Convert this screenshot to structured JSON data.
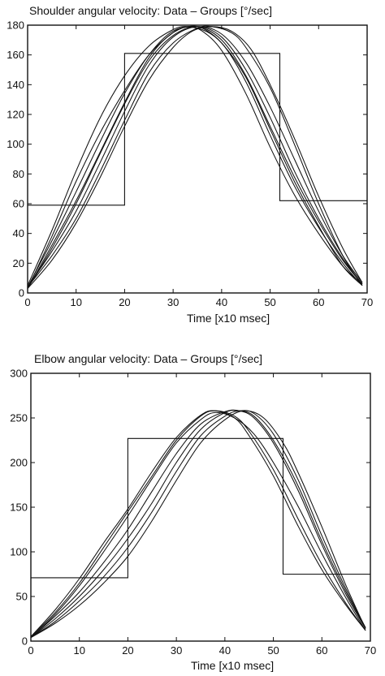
{
  "chart_data": [
    {
      "type": "line",
      "title": "Shoulder angular velocity: Data – Groups  [°/sec]",
      "xlabel": "Time  [x10 msec]",
      "ylabel": "",
      "xlim": [
        0,
        70
      ],
      "ylim": [
        0,
        180
      ],
      "xticks": [
        0,
        10,
        20,
        30,
        40,
        50,
        60,
        70
      ],
      "yticks": [
        0,
        20,
        40,
        60,
        80,
        100,
        120,
        140,
        160,
        180
      ],
      "grid": false,
      "series": [
        {
          "x": [
            0,
            5,
            10,
            15,
            20,
            25,
            30,
            33,
            36,
            40,
            45,
            50,
            55,
            60,
            65,
            69
          ],
          "y": [
            3,
            38,
            75,
            108,
            136,
            160,
            175,
            179,
            178,
            168,
            145,
            110,
            75,
            45,
            18,
            5
          ]
        },
        {
          "x": [
            0,
            5,
            10,
            15,
            20,
            25,
            30,
            35,
            40,
            45,
            50,
            55,
            60,
            65,
            69
          ],
          "y": [
            3,
            32,
            62,
            95,
            128,
            158,
            175,
            179,
            170,
            146,
            112,
            78,
            48,
            22,
            6
          ]
        },
        {
          "x": [
            0,
            5,
            10,
            15,
            20,
            25,
            30,
            35,
            40,
            45,
            50,
            55,
            60,
            65,
            69
          ],
          "y": [
            4,
            28,
            55,
            88,
            122,
            153,
            172,
            179,
            174,
            155,
            125,
            90,
            55,
            25,
            7
          ]
        },
        {
          "x": [
            0,
            5,
            10,
            15,
            20,
            25,
            30,
            35,
            38,
            42,
            45,
            50,
            55,
            60,
            65,
            69
          ],
          "y": [
            4,
            25,
            50,
            82,
            116,
            148,
            168,
            178,
            179,
            175,
            165,
            138,
            100,
            60,
            25,
            5
          ]
        },
        {
          "x": [
            0,
            5,
            10,
            15,
            20,
            25,
            30,
            34,
            38,
            42,
            46,
            50,
            55,
            60,
            65,
            69
          ],
          "y": [
            3,
            22,
            47,
            78,
            112,
            143,
            165,
            176,
            179,
            176,
            164,
            140,
            104,
            65,
            30,
            7
          ]
        },
        {
          "x": [
            0,
            5,
            10,
            15,
            20,
            25,
            30,
            33,
            36,
            40,
            45,
            50,
            55,
            60,
            65,
            69
          ],
          "y": [
            5,
            42,
            82,
            118,
            146,
            166,
            177,
            179,
            176,
            163,
            134,
            98,
            66,
            40,
            18,
            6
          ]
        },
        {
          "x": [
            0,
            5,
            10,
            15,
            20,
            25,
            30,
            35,
            40,
            45,
            50,
            55,
            60,
            65,
            69
          ],
          "y": [
            4,
            35,
            68,
            102,
            134,
            160,
            176,
            178,
            168,
            142,
            106,
            72,
            44,
            20,
            5
          ]
        },
        {
          "x": [
            0,
            5,
            10,
            15,
            20,
            25,
            30,
            35,
            40,
            45,
            50,
            55,
            60,
            65,
            69
          ],
          "y": [
            3,
            30,
            60,
            94,
            127,
            156,
            173,
            179,
            172,
            150,
            118,
            82,
            50,
            23,
            6
          ]
        }
      ],
      "groups": {
        "x": [
          0,
          20,
          20,
          52,
          52,
          70
        ],
        "y": [
          59,
          59,
          161,
          161,
          62,
          62
        ]
      }
    },
    {
      "type": "line",
      "title": "Elbow angular velocity: Data – Groups  [°/sec]",
      "xlabel": "Time  [x10 msec]",
      "ylabel": "",
      "xlim": [
        0,
        70
      ],
      "ylim": [
        0,
        300
      ],
      "xticks": [
        0,
        10,
        20,
        30,
        40,
        50,
        60,
        70
      ],
      "yticks": [
        0,
        50,
        100,
        150,
        200,
        250,
        300
      ],
      "grid": false,
      "series": [
        {
          "x": [
            0,
            5,
            10,
            15,
            20,
            25,
            30,
            35,
            38,
            42,
            45,
            50,
            55,
            60,
            65,
            69
          ],
          "y": [
            5,
            35,
            70,
            110,
            148,
            190,
            228,
            253,
            258,
            250,
            230,
            185,
            130,
            80,
            40,
            12
          ]
        },
        {
          "x": [
            0,
            5,
            10,
            15,
            20,
            25,
            30,
            35,
            38,
            42,
            45,
            50,
            55,
            60,
            65,
            69
          ],
          "y": [
            5,
            32,
            65,
            105,
            145,
            185,
            225,
            252,
            258,
            252,
            235,
            192,
            138,
            86,
            42,
            12
          ]
        },
        {
          "x": [
            0,
            5,
            10,
            15,
            20,
            25,
            30,
            35,
            40,
            43,
            46,
            50,
            55,
            60,
            65,
            69
          ],
          "y": [
            4,
            25,
            50,
            80,
            115,
            155,
            200,
            237,
            256,
            258,
            252,
            225,
            175,
            112,
            55,
            15
          ]
        },
        {
          "x": [
            0,
            5,
            10,
            15,
            20,
            25,
            30,
            35,
            40,
            43,
            46,
            50,
            55,
            60,
            65,
            69
          ],
          "y": [
            4,
            22,
            45,
            72,
            105,
            145,
            190,
            230,
            252,
            258,
            255,
            232,
            182,
            118,
            58,
            15
          ]
        },
        {
          "x": [
            0,
            5,
            10,
            15,
            20,
            25,
            30,
            35,
            40,
            44,
            48,
            52,
            55,
            60,
            65,
            69
          ],
          "y": [
            4,
            20,
            40,
            65,
            95,
            135,
            180,
            222,
            248,
            258,
            250,
            222,
            190,
            128,
            62,
            14
          ]
        },
        {
          "x": [
            0,
            5,
            10,
            15,
            20,
            25,
            30,
            35,
            38,
            42,
            46,
            50,
            55,
            60,
            65,
            69
          ],
          "y": [
            4,
            30,
            62,
            100,
            140,
            182,
            222,
            248,
            256,
            250,
            232,
            200,
            152,
            98,
            48,
            12
          ]
        },
        {
          "x": [
            0,
            5,
            10,
            15,
            20,
            25,
            30,
            35,
            40,
            43,
            46,
            50,
            55,
            60,
            65,
            69
          ],
          "y": [
            4,
            28,
            55,
            88,
            125,
            168,
            210,
            243,
            257,
            258,
            250,
            222,
            170,
            108,
            52,
            14
          ]
        }
      ],
      "groups": {
        "x": [
          0,
          20,
          20,
          52,
          52,
          70
        ],
        "y": [
          71,
          71,
          227,
          227,
          75,
          75
        ]
      }
    }
  ]
}
